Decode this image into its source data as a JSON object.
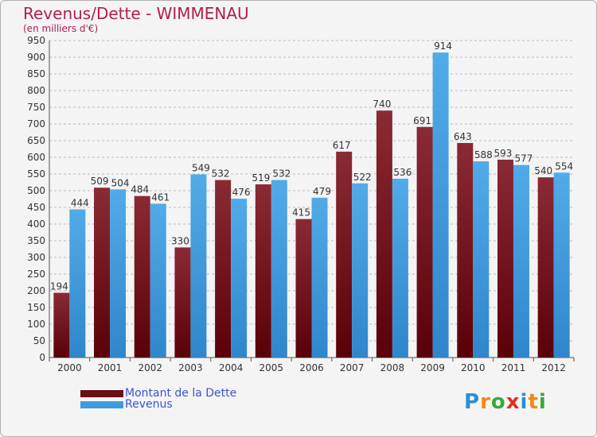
{
  "chart_data": {
    "type": "bar",
    "title": "Revenus/Dette - WIMMENAU",
    "subtitle": "(en milliers d'€)",
    "categories": [
      "2000",
      "2001",
      "2002",
      "2003",
      "2004",
      "2005",
      "2006",
      "2007",
      "2008",
      "2009",
      "2010",
      "2011",
      "2012"
    ],
    "series": [
      {
        "name": "Montant de la Dette",
        "color": "#7a1520",
        "values": [
          194,
          509,
          484,
          330,
          532,
          519,
          415,
          617,
          740,
          691,
          643,
          593,
          540
        ]
      },
      {
        "name": "Revenus",
        "color": "#3f9be0",
        "values": [
          444,
          504,
          461,
          549,
          476,
          532,
          479,
          522,
          536,
          914,
          588,
          577,
          554
        ]
      }
    ],
    "ylim": [
      0,
      950
    ],
    "yticks": [
      0,
      50,
      100,
      150,
      200,
      250,
      300,
      350,
      400,
      450,
      500,
      550,
      600,
      650,
      700,
      750,
      800,
      850,
      900,
      950
    ],
    "grid": true,
    "legend_position": "bottom-left"
  },
  "logo": {
    "letters": [
      "P",
      "r",
      "o",
      "x",
      "i",
      "t",
      "i"
    ],
    "colors": [
      "#2a8fd8",
      "#f08a12",
      "#38a838",
      "#e03020",
      "#2a8fd8",
      "#f08a12",
      "#38a838"
    ]
  }
}
